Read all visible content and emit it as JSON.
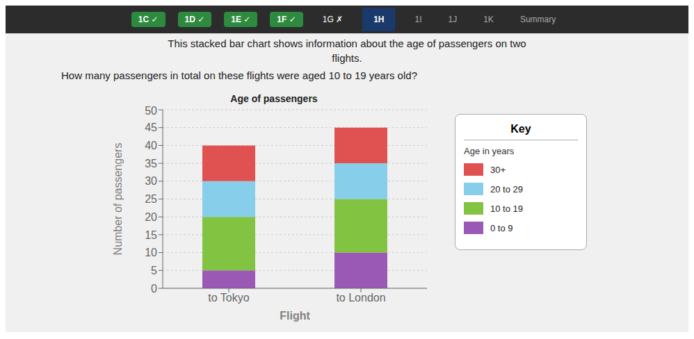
{
  "chart_data": {
    "type": "bar",
    "title": "Age of passengers",
    "xlabel": "Flight",
    "ylabel": "Number of passengers",
    "categories": [
      "to Tokyo",
      "to London"
    ],
    "series": [
      {
        "name": "0 to 9",
        "color": "#9b59b6",
        "values": [
          5,
          10
        ]
      },
      {
        "name": "10 to 19",
        "color": "#82c341",
        "values": [
          15,
          15
        ]
      },
      {
        "name": "20 to 29",
        "color": "#87ceeb",
        "values": [
          10,
          10
        ]
      },
      {
        "name": "30+",
        "color": "#e05252",
        "values": [
          10,
          10
        ]
      }
    ],
    "stacked": true,
    "ylim": [
      0,
      50
    ],
    "yticks": [
      0,
      5,
      10,
      15,
      20,
      25,
      30,
      35,
      40,
      45,
      50
    ],
    "grid": true,
    "legend": "right",
    "annotations": [
      "1C ✓",
      "1D ✓",
      "1E ✓",
      "1F ✓",
      "1G ✗",
      "1H",
      "1I",
      "1J",
      "1K",
      "Summary",
      "This stacked bar chart shows information about the age of passengers on two",
      "flights.",
      "How many passengers in total on these flights were aged 10 to 19 years old?",
      "Key",
      "Age in years"
    ]
  }
}
